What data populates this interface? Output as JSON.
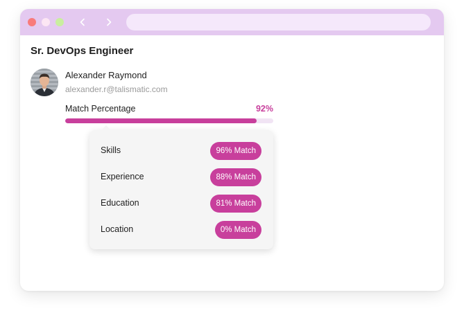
{
  "browser": {
    "address_value": "",
    "dots": [
      {
        "name": "close",
        "color": "#f87b7b"
      },
      {
        "name": "minimize",
        "color": "#fce6f4"
      },
      {
        "name": "maximize",
        "color": "#c9ee9f"
      }
    ],
    "back_icon": "chevron-left-icon",
    "forward_icon": "chevron-right-icon"
  },
  "job": {
    "title": "Sr. DevOps Engineer"
  },
  "candidate": {
    "name": "Alexander Raymond",
    "email": "alexander.r@talismatic.com",
    "avatar_icon": "avatar"
  },
  "match": {
    "label": "Match Percentage",
    "value": "92%",
    "fraction": 0.92,
    "accent_color": "#c83f9c"
  },
  "breakdown": [
    {
      "label": "Skills",
      "badge": "96% Match"
    },
    {
      "label": "Experience",
      "badge": "88% Match"
    },
    {
      "label": "Education",
      "badge": "81% Match"
    },
    {
      "label": "Location",
      "badge": "0% Match"
    }
  ]
}
